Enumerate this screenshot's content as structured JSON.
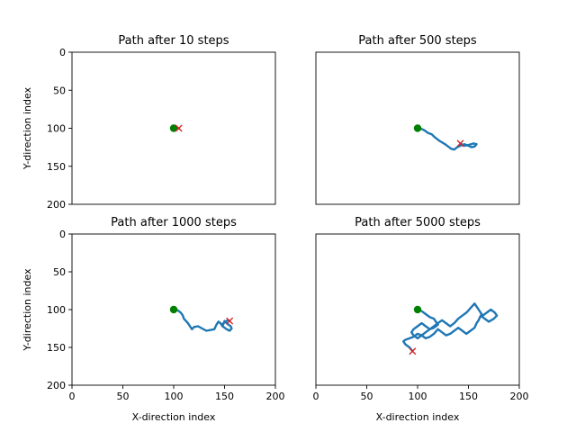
{
  "chart_data": [
    {
      "type": "line",
      "title": "Path after 10 steps",
      "xlabel": "",
      "ylabel": "Y-direction index",
      "xlim": [
        0,
        200
      ],
      "ylim": [
        200,
        0
      ],
      "xticks": [],
      "yticks": [
        0,
        50,
        100,
        150,
        200
      ],
      "path_color": "#1f77b4",
      "start": {
        "x": 100,
        "y": 100,
        "color": "#008000"
      },
      "end": {
        "x": 105,
        "y": 100,
        "color": "#d62728"
      },
      "series": [
        {
          "x": [
            100,
            101,
            102,
            103,
            104,
            105
          ],
          "y": [
            100,
            100,
            99,
            100,
            101,
            100
          ]
        }
      ]
    },
    {
      "type": "line",
      "title": "Path after 500 steps",
      "xlabel": "",
      "ylabel": "",
      "xlim": [
        0,
        200
      ],
      "ylim": [
        200,
        0
      ],
      "xticks": [],
      "yticks": [],
      "path_color": "#1f77b4",
      "start": {
        "x": 100,
        "y": 100,
        "color": "#008000"
      },
      "end": {
        "x": 142,
        "y": 120,
        "color": "#d62728"
      },
      "series": [
        {
          "x": [
            100,
            104,
            107,
            110,
            114,
            117,
            122,
            127,
            131,
            133,
            136,
            139,
            142,
            146,
            150,
            153,
            156,
            158,
            155,
            150,
            146,
            142
          ],
          "y": [
            100,
            101,
            103,
            106,
            108,
            112,
            117,
            121,
            125,
            127,
            128,
            125,
            123,
            121,
            123,
            125,
            124,
            121,
            120,
            122,
            123,
            120
          ]
        }
      ]
    },
    {
      "type": "line",
      "title": "Path after 1000 steps",
      "xlabel": "X-direction index",
      "ylabel": "Y-direction index",
      "xlim": [
        0,
        200
      ],
      "ylim": [
        200,
        0
      ],
      "xticks": [
        0,
        50,
        100,
        150,
        200
      ],
      "yticks": [
        0,
        50,
        100,
        150,
        200
      ],
      "path_color": "#1f77b4",
      "start": {
        "x": 100,
        "y": 100,
        "color": "#008000"
      },
      "end": {
        "x": 155,
        "y": 115,
        "color": "#d62728"
      },
      "series": [
        {
          "x": [
            100,
            104,
            107,
            109,
            110,
            112,
            114,
            116,
            118,
            120,
            124,
            128,
            132,
            136,
            140,
            142,
            144,
            146,
            148,
            150,
            152,
            154,
            156,
            157,
            155,
            152,
            149,
            147,
            150,
            153,
            155
          ],
          "y": [
            100,
            101,
            104,
            108,
            112,
            115,
            118,
            122,
            126,
            123,
            122,
            125,
            128,
            127,
            126,
            120,
            116,
            118,
            122,
            115,
            118,
            120,
            122,
            125,
            128,
            126,
            123,
            120,
            117,
            114,
            115
          ]
        }
      ]
    },
    {
      "type": "line",
      "title": "Path after 5000 steps",
      "xlabel": "X-direction index",
      "ylabel": "",
      "xlim": [
        0,
        200
      ],
      "ylim": [
        200,
        0
      ],
      "xticks": [
        0,
        50,
        100,
        150,
        200
      ],
      "yticks": [],
      "path_color": "#1f77b4",
      "start": {
        "x": 100,
        "y": 100,
        "color": "#008000"
      },
      "end": {
        "x": 95,
        "y": 155,
        "color": "#d62728"
      },
      "series": [
        {
          "x": [
            100,
            104,
            108,
            112,
            116,
            118,
            120,
            116,
            112,
            108,
            104,
            100,
            96,
            94,
            96,
            100,
            104,
            108,
            112,
            116,
            120,
            124,
            128,
            132,
            136,
            140,
            144,
            148,
            152,
            156,
            158,
            160,
            162,
            164,
            168,
            172,
            176,
            178,
            175,
            170,
            166,
            162,
            160,
            158,
            156,
            152,
            148,
            144,
            140,
            136,
            132,
            128,
            124,
            120,
            116,
            112,
            108,
            104,
            100,
            96,
            92,
            88,
            86,
            88,
            92,
            95
          ],
          "y": [
            100,
            102,
            106,
            110,
            112,
            116,
            120,
            124,
            126,
            122,
            118,
            122,
            126,
            130,
            134,
            138,
            134,
            130,
            126,
            122,
            118,
            114,
            118,
            122,
            118,
            112,
            108,
            104,
            98,
            92,
            96,
            100,
            104,
            108,
            104,
            100,
            104,
            108,
            112,
            116,
            112,
            108,
            114,
            118,
            124,
            128,
            132,
            128,
            124,
            128,
            132,
            134,
            130,
            126,
            132,
            136,
            138,
            134,
            132,
            136,
            138,
            140,
            142,
            146,
            150,
            155
          ]
        }
      ]
    }
  ]
}
